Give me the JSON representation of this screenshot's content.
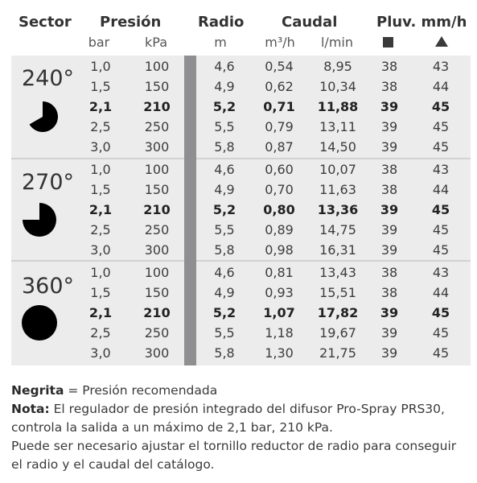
{
  "headers": {
    "sector": "Sector",
    "presion": "Presión",
    "radio": "Radio",
    "caudal": "Caudal",
    "pluv": "Pluv. mm/h"
  },
  "units": {
    "bar": "bar",
    "kpa": "kPa",
    "m": "m",
    "m3h": "m³/h",
    "lmin": "l/min",
    "pluv_square_icon": "square-icon",
    "pluv_triangle_icon": "triangle-icon"
  },
  "colors": {
    "block_bg": "#ececed",
    "divider": "#8f8f91",
    "text": "#3a3a3a"
  },
  "groups": [
    {
      "label": "240°",
      "icon": "pie-240-icon",
      "rows": [
        {
          "bar": "1,0",
          "kpa": "100",
          "radio": "4,6",
          "m3h": "0,54",
          "lmin": "8,95",
          "sq": "38",
          "tri": "43",
          "recommended": false
        },
        {
          "bar": "1,5",
          "kpa": "150",
          "radio": "4,9",
          "m3h": "0,62",
          "lmin": "10,34",
          "sq": "38",
          "tri": "44",
          "recommended": false
        },
        {
          "bar": "2,1",
          "kpa": "210",
          "radio": "5,2",
          "m3h": "0,71",
          "lmin": "11,88",
          "sq": "39",
          "tri": "45",
          "recommended": true
        },
        {
          "bar": "2,5",
          "kpa": "250",
          "radio": "5,5",
          "m3h": "0,79",
          "lmin": "13,11",
          "sq": "39",
          "tri": "45",
          "recommended": false
        },
        {
          "bar": "3,0",
          "kpa": "300",
          "radio": "5,8",
          "m3h": "0,87",
          "lmin": "14,50",
          "sq": "39",
          "tri": "45",
          "recommended": false
        }
      ]
    },
    {
      "label": "270°",
      "icon": "pie-270-icon",
      "rows": [
        {
          "bar": "1,0",
          "kpa": "100",
          "radio": "4,6",
          "m3h": "0,60",
          "lmin": "10,07",
          "sq": "38",
          "tri": "43",
          "recommended": false
        },
        {
          "bar": "1,5",
          "kpa": "150",
          "radio": "4,9",
          "m3h": "0,70",
          "lmin": "11,63",
          "sq": "38",
          "tri": "44",
          "recommended": false
        },
        {
          "bar": "2,1",
          "kpa": "210",
          "radio": "5,2",
          "m3h": "0,80",
          "lmin": "13,36",
          "sq": "39",
          "tri": "45",
          "recommended": true
        },
        {
          "bar": "2,5",
          "kpa": "250",
          "radio": "5,5",
          "m3h": "0,89",
          "lmin": "14,75",
          "sq": "39",
          "tri": "45",
          "recommended": false
        },
        {
          "bar": "3,0",
          "kpa": "300",
          "radio": "5,8",
          "m3h": "0,98",
          "lmin": "16,31",
          "sq": "39",
          "tri": "45",
          "recommended": false
        }
      ]
    },
    {
      "label": "360°",
      "icon": "full-circle-icon",
      "rows": [
        {
          "bar": "1,0",
          "kpa": "100",
          "radio": "4,6",
          "m3h": "0,81",
          "lmin": "13,43",
          "sq": "38",
          "tri": "43",
          "recommended": false
        },
        {
          "bar": "1,5",
          "kpa": "150",
          "radio": "4,9",
          "m3h": "0,93",
          "lmin": "15,51",
          "sq": "38",
          "tri": "44",
          "recommended": false
        },
        {
          "bar": "2,1",
          "kpa": "210",
          "radio": "5,2",
          "m3h": "1,07",
          "lmin": "17,82",
          "sq": "39",
          "tri": "45",
          "recommended": true
        },
        {
          "bar": "2,5",
          "kpa": "250",
          "radio": "5,5",
          "m3h": "1,18",
          "lmin": "19,67",
          "sq": "39",
          "tri": "45",
          "recommended": false
        },
        {
          "bar": "3,0",
          "kpa": "300",
          "radio": "5,8",
          "m3h": "1,30",
          "lmin": "21,75",
          "sq": "39",
          "tri": "45",
          "recommended": false
        }
      ]
    }
  ],
  "notes": {
    "bold_label": "Negrita",
    "bold_text": " = Presión recomendada",
    "nota_label": "Nota:",
    "nota_text": " El regulador de presión integrado del difusor Pro-Spray PRS30, controla la salida a un máximo de 2,1 bar, 210 kPa.",
    "extra_text": "Puede ser necesario ajustar el tornillo reductor de radio para conseguir el radio y el caudal del catálogo."
  }
}
